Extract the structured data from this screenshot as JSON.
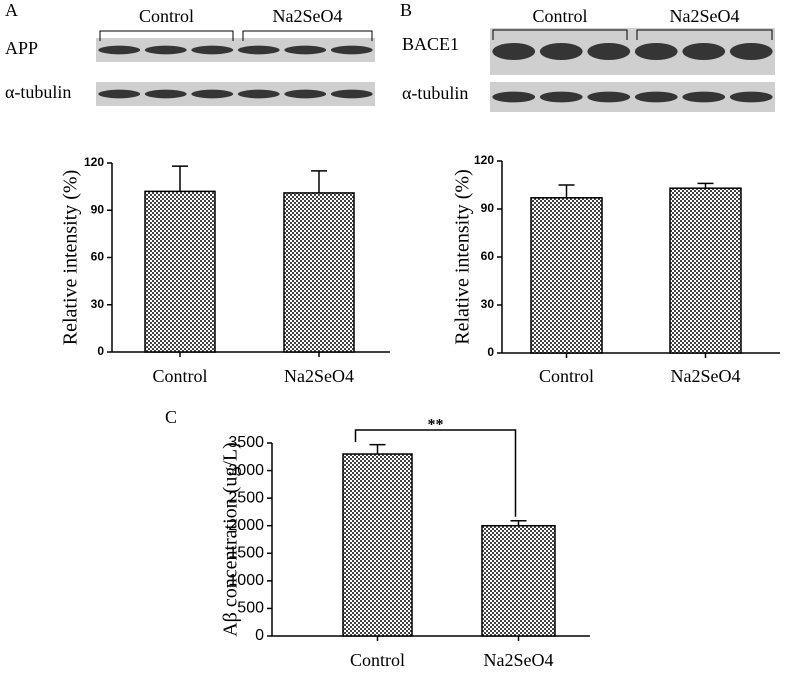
{
  "chart_data": [
    {
      "type": "bar",
      "panel_label": "A",
      "blot": {
        "groups": [
          "Control",
          "Na2SeO4"
        ],
        "rows": [
          "APP",
          "α-tubulin"
        ]
      },
      "y_label": "Relative intensity (%)",
      "categories": [
        "Control",
        "Na2SeO4"
      ],
      "values": [
        102,
        101
      ],
      "errors": [
        16,
        14
      ],
      "color": "#444444",
      "ylim": [
        0,
        120
      ],
      "yticks": [
        0,
        30,
        60,
        90,
        120
      ]
    },
    {
      "type": "bar",
      "panel_label": "B",
      "blot": {
        "groups": [
          "Control",
          "Na2SeO4"
        ],
        "rows": [
          "BACE1",
          "α-tubulin"
        ]
      },
      "y_label": "Relative intensity (%)",
      "categories": [
        "Control",
        "Na2SeO4"
      ],
      "values": [
        97,
        103
      ],
      "errors": [
        8,
        3
      ],
      "color": "#444444",
      "ylim": [
        0,
        120
      ],
      "yticks": [
        0,
        30,
        60,
        90,
        120
      ]
    },
    {
      "type": "bar",
      "panel_label": "C",
      "y_label": "Aβ  concentration (ug/L)",
      "categories": [
        "Control",
        "Na2SeO4"
      ],
      "values": [
        3300,
        2000
      ],
      "errors": [
        170,
        90
      ],
      "color": "#444444",
      "ylim": [
        0,
        3500
      ],
      "yticks": [
        0,
        500,
        1000,
        1500,
        2000,
        2500,
        3000,
        3500
      ],
      "annotation": "**"
    }
  ]
}
